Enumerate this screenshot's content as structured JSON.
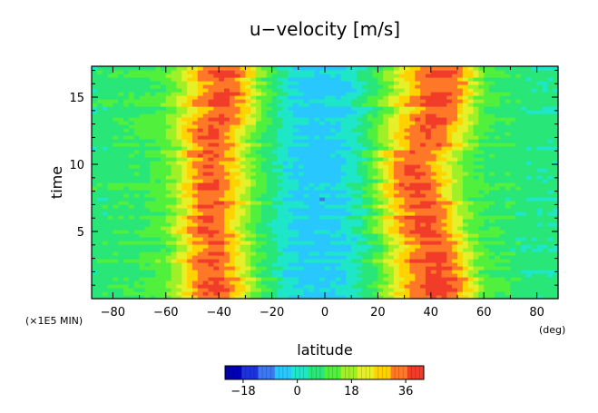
{
  "chart_data": {
    "type": "heatmap",
    "title": "u−velocity [m/s]",
    "xlabel": "latitude",
    "ylabel": "time",
    "x_unit": "(deg)",
    "y_scale_note": "(×1E5 MIN)",
    "xlim": [
      -88,
      88
    ],
    "ylim": [
      0,
      17.3
    ],
    "x_ticks": [
      -80,
      -60,
      -40,
      -20,
      0,
      20,
      40,
      60,
      80
    ],
    "x_tick_labels": [
      "−80",
      "−60",
      "−40",
      "−20",
      "0",
      "20",
      "40",
      "60",
      "80"
    ],
    "y_ticks": [
      5,
      10,
      15
    ],
    "y_tick_labels": [
      "5",
      "10",
      "15"
    ],
    "colorbar": {
      "min": -24,
      "max": 42,
      "tick_values": [
        -18,
        0,
        18,
        36
      ],
      "tick_labels": [
        "−18",
        "0",
        "18",
        "36"
      ],
      "colors": [
        "#0000b4",
        "#1e32dc",
        "#3c78f0",
        "#28c8ff",
        "#1ee6c8",
        "#28e678",
        "#50f03c",
        "#a0f028",
        "#e6f028",
        "#ffd200",
        "#ff7828",
        "#f03c28"
      ]
    },
    "field": {
      "x": [
        -88,
        -80,
        -70,
        -60,
        -55,
        -50,
        -45,
        -40,
        -35,
        -30,
        -25,
        -20,
        -15,
        -10,
        -5,
        0,
        5,
        10,
        15,
        20,
        25,
        30,
        35,
        40,
        45,
        50,
        55,
        60,
        70,
        80,
        88
      ],
      "y": [
        0,
        2,
        4,
        6,
        8,
        10,
        12,
        14,
        16,
        17.3
      ],
      "u": [
        [
          6,
          7,
          8,
          12,
          18,
          28,
          36,
          37,
          31,
          22,
          12,
          6,
          0,
          -3,
          -4,
          -4,
          -3,
          0,
          5,
          10,
          18,
          27,
          34,
          38,
          38,
          34,
          24,
          12,
          7,
          5,
          5
        ],
        [
          6,
          7,
          8,
          12,
          18,
          28,
          36,
          37,
          31,
          22,
          12,
          6,
          0,
          -3,
          -4,
          -4,
          -3,
          0,
          5,
          10,
          18,
          27,
          34,
          38,
          38,
          34,
          24,
          12,
          7,
          5,
          5
        ],
        [
          6,
          7,
          8,
          12,
          20,
          30,
          36,
          35,
          27,
          18,
          10,
          5,
          0,
          -3,
          -4,
          -4,
          -3,
          0,
          5,
          12,
          20,
          29,
          36,
          38,
          35,
          26,
          16,
          10,
          7,
          5,
          5
        ],
        [
          6,
          7,
          8,
          12,
          20,
          30,
          37,
          35,
          27,
          18,
          10,
          5,
          0,
          -3,
          -4,
          -4,
          -3,
          0,
          6,
          14,
          24,
          32,
          37,
          37,
          33,
          22,
          14,
          9,
          7,
          5,
          5
        ],
        [
          6,
          7,
          8,
          12,
          18,
          28,
          36,
          36,
          29,
          20,
          12,
          6,
          0,
          -3,
          -4,
          -4,
          -3,
          0,
          6,
          14,
          26,
          34,
          38,
          36,
          28,
          18,
          12,
          9,
          7,
          5,
          5
        ],
        [
          6,
          7,
          8,
          12,
          18,
          28,
          36,
          36,
          29,
          20,
          12,
          6,
          0,
          -3,
          -4,
          -4,
          -3,
          0,
          6,
          16,
          28,
          36,
          37,
          32,
          24,
          16,
          11,
          8,
          7,
          5,
          5
        ],
        [
          6,
          7,
          8,
          12,
          20,
          30,
          37,
          36,
          28,
          18,
          10,
          5,
          0,
          -3,
          -4,
          -4,
          -3,
          0,
          5,
          12,
          20,
          28,
          34,
          36,
          33,
          24,
          15,
          9,
          7,
          5,
          5
        ],
        [
          6,
          7,
          8,
          12,
          18,
          26,
          33,
          37,
          36,
          28,
          16,
          8,
          1,
          -3,
          -4,
          -4,
          -3,
          0,
          5,
          10,
          18,
          26,
          33,
          37,
          37,
          32,
          20,
          10,
          7,
          5,
          5
        ],
        [
          6,
          7,
          8,
          12,
          18,
          26,
          33,
          37,
          36,
          28,
          16,
          8,
          1,
          -3,
          -4,
          -4,
          -3,
          0,
          5,
          10,
          17,
          25,
          32,
          36,
          37,
          34,
          22,
          11,
          7,
          5,
          5
        ],
        [
          6,
          7,
          8,
          12,
          18,
          26,
          33,
          37,
          36,
          28,
          16,
          8,
          1,
          -3,
          -4,
          -4,
          -3,
          0,
          5,
          10,
          17,
          25,
          32,
          36,
          37,
          34,
          22,
          11,
          7,
          5,
          5
        ]
      ]
    }
  }
}
